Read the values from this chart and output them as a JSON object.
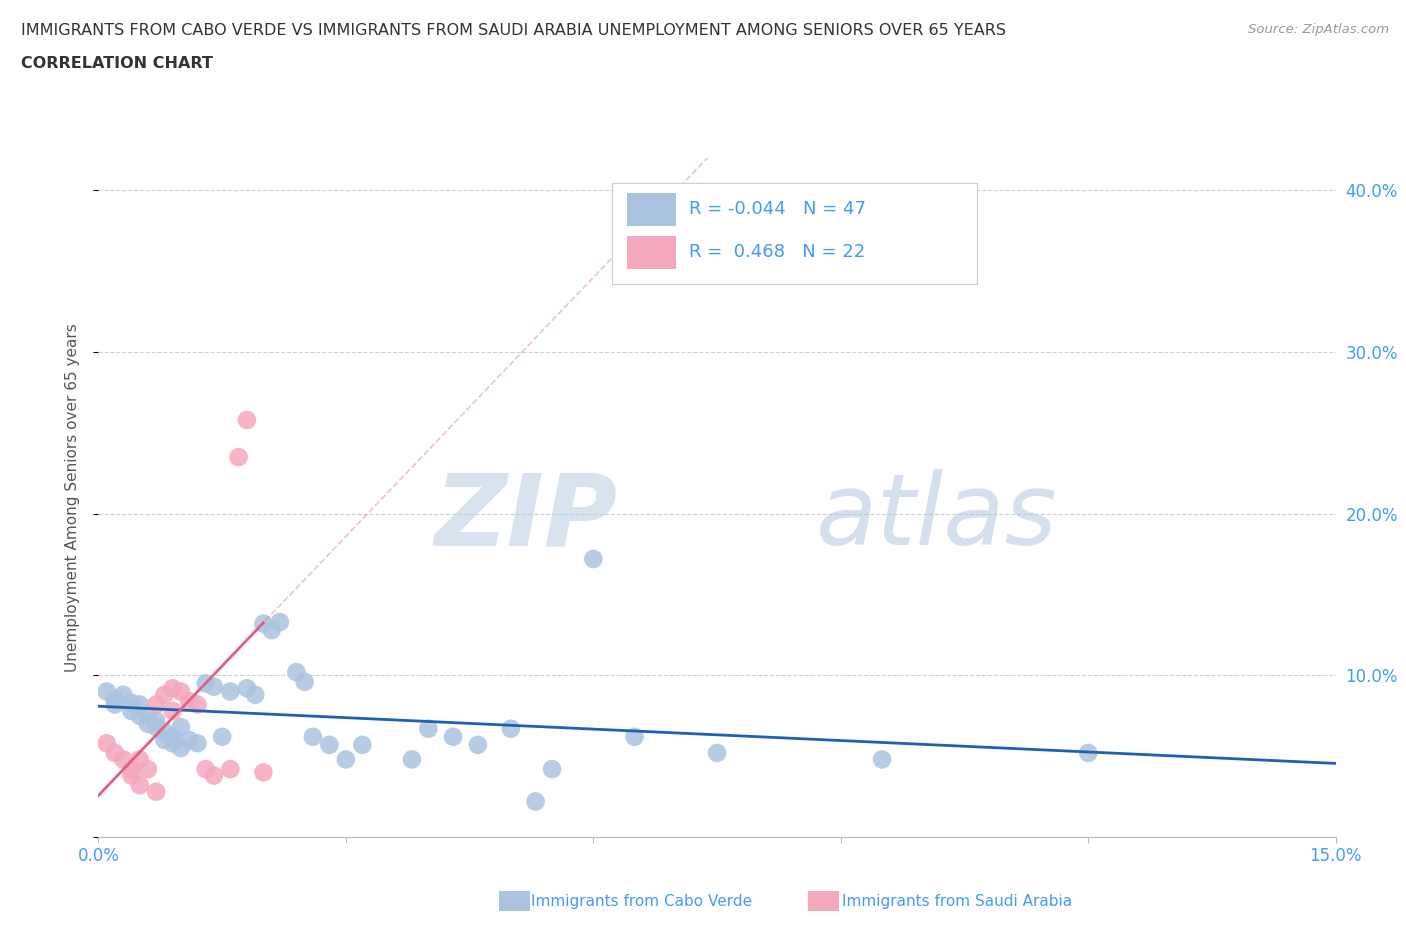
{
  "title_line1": "IMMIGRANTS FROM CABO VERDE VS IMMIGRANTS FROM SAUDI ARABIA UNEMPLOYMENT AMONG SENIORS OVER 65 YEARS",
  "title_line2": "CORRELATION CHART",
  "source": "Source: ZipAtlas.com",
  "ylabel": "Unemployment Among Seniors over 65 years",
  "xlim": [
    0.0,
    0.15
  ],
  "ylim": [
    0.0,
    0.42
  ],
  "cabo_verde_R": -0.044,
  "cabo_verde_N": 47,
  "saudi_arabia_R": 0.468,
  "saudi_arabia_N": 22,
  "cabo_verde_color": "#aac4e0",
  "saudi_arabia_color": "#f4a8bc",
  "cabo_verde_line_color": "#2060b0",
  "saudi_arabia_line_color": "#e06080",
  "cabo_verde_scatter": [
    [
      0.001,
      0.09
    ],
    [
      0.002,
      0.085
    ],
    [
      0.002,
      0.082
    ],
    [
      0.003,
      0.088
    ],
    [
      0.004,
      0.083
    ],
    [
      0.004,
      0.078
    ],
    [
      0.005,
      0.075
    ],
    [
      0.005,
      0.082
    ],
    [
      0.006,
      0.07
    ],
    [
      0.006,
      0.076
    ],
    [
      0.007,
      0.068
    ],
    [
      0.007,
      0.072
    ],
    [
      0.008,
      0.065
    ],
    [
      0.008,
      0.06
    ],
    [
      0.009,
      0.058
    ],
    [
      0.009,
      0.062
    ],
    [
      0.01,
      0.055
    ],
    [
      0.01,
      0.068
    ],
    [
      0.011,
      0.06
    ],
    [
      0.012,
      0.058
    ],
    [
      0.013,
      0.095
    ],
    [
      0.014,
      0.093
    ],
    [
      0.015,
      0.062
    ],
    [
      0.016,
      0.09
    ],
    [
      0.018,
      0.092
    ],
    [
      0.019,
      0.088
    ],
    [
      0.02,
      0.132
    ],
    [
      0.021,
      0.128
    ],
    [
      0.022,
      0.133
    ],
    [
      0.024,
      0.102
    ],
    [
      0.025,
      0.096
    ],
    [
      0.026,
      0.062
    ],
    [
      0.028,
      0.057
    ],
    [
      0.03,
      0.048
    ],
    [
      0.032,
      0.057
    ],
    [
      0.038,
      0.048
    ],
    [
      0.04,
      0.067
    ],
    [
      0.043,
      0.062
    ],
    [
      0.046,
      0.057
    ],
    [
      0.05,
      0.067
    ],
    [
      0.053,
      0.022
    ],
    [
      0.055,
      0.042
    ],
    [
      0.06,
      0.172
    ],
    [
      0.065,
      0.062
    ],
    [
      0.075,
      0.052
    ],
    [
      0.095,
      0.048
    ],
    [
      0.12,
      0.052
    ]
  ],
  "saudi_arabia_scatter": [
    [
      0.001,
      0.058
    ],
    [
      0.002,
      0.052
    ],
    [
      0.003,
      0.048
    ],
    [
      0.004,
      0.042
    ],
    [
      0.004,
      0.038
    ],
    [
      0.005,
      0.032
    ],
    [
      0.005,
      0.048
    ],
    [
      0.006,
      0.042
    ],
    [
      0.007,
      0.028
    ],
    [
      0.007,
      0.082
    ],
    [
      0.008,
      0.088
    ],
    [
      0.009,
      0.092
    ],
    [
      0.009,
      0.078
    ],
    [
      0.01,
      0.09
    ],
    [
      0.011,
      0.084
    ],
    [
      0.012,
      0.082
    ],
    [
      0.013,
      0.042
    ],
    [
      0.014,
      0.038
    ],
    [
      0.016,
      0.042
    ],
    [
      0.017,
      0.235
    ],
    [
      0.018,
      0.258
    ],
    [
      0.02,
      0.04
    ]
  ],
  "watermark_zip": "ZIP",
  "watermark_atlas": "atlas",
  "background_color": "#ffffff",
  "grid_color": "#d0d0d0",
  "title_color": "#333333",
  "ylabel_color": "#555555",
  "blue_color": "#4499ff",
  "source_color": "#999999",
  "legend_text_color": "#4499ff",
  "right_yticks": [
    0.1,
    0.2,
    0.3,
    0.4
  ],
  "right_yticklabels": [
    "10.0%",
    "20.0%",
    "30.0%",
    "40.0%"
  ]
}
